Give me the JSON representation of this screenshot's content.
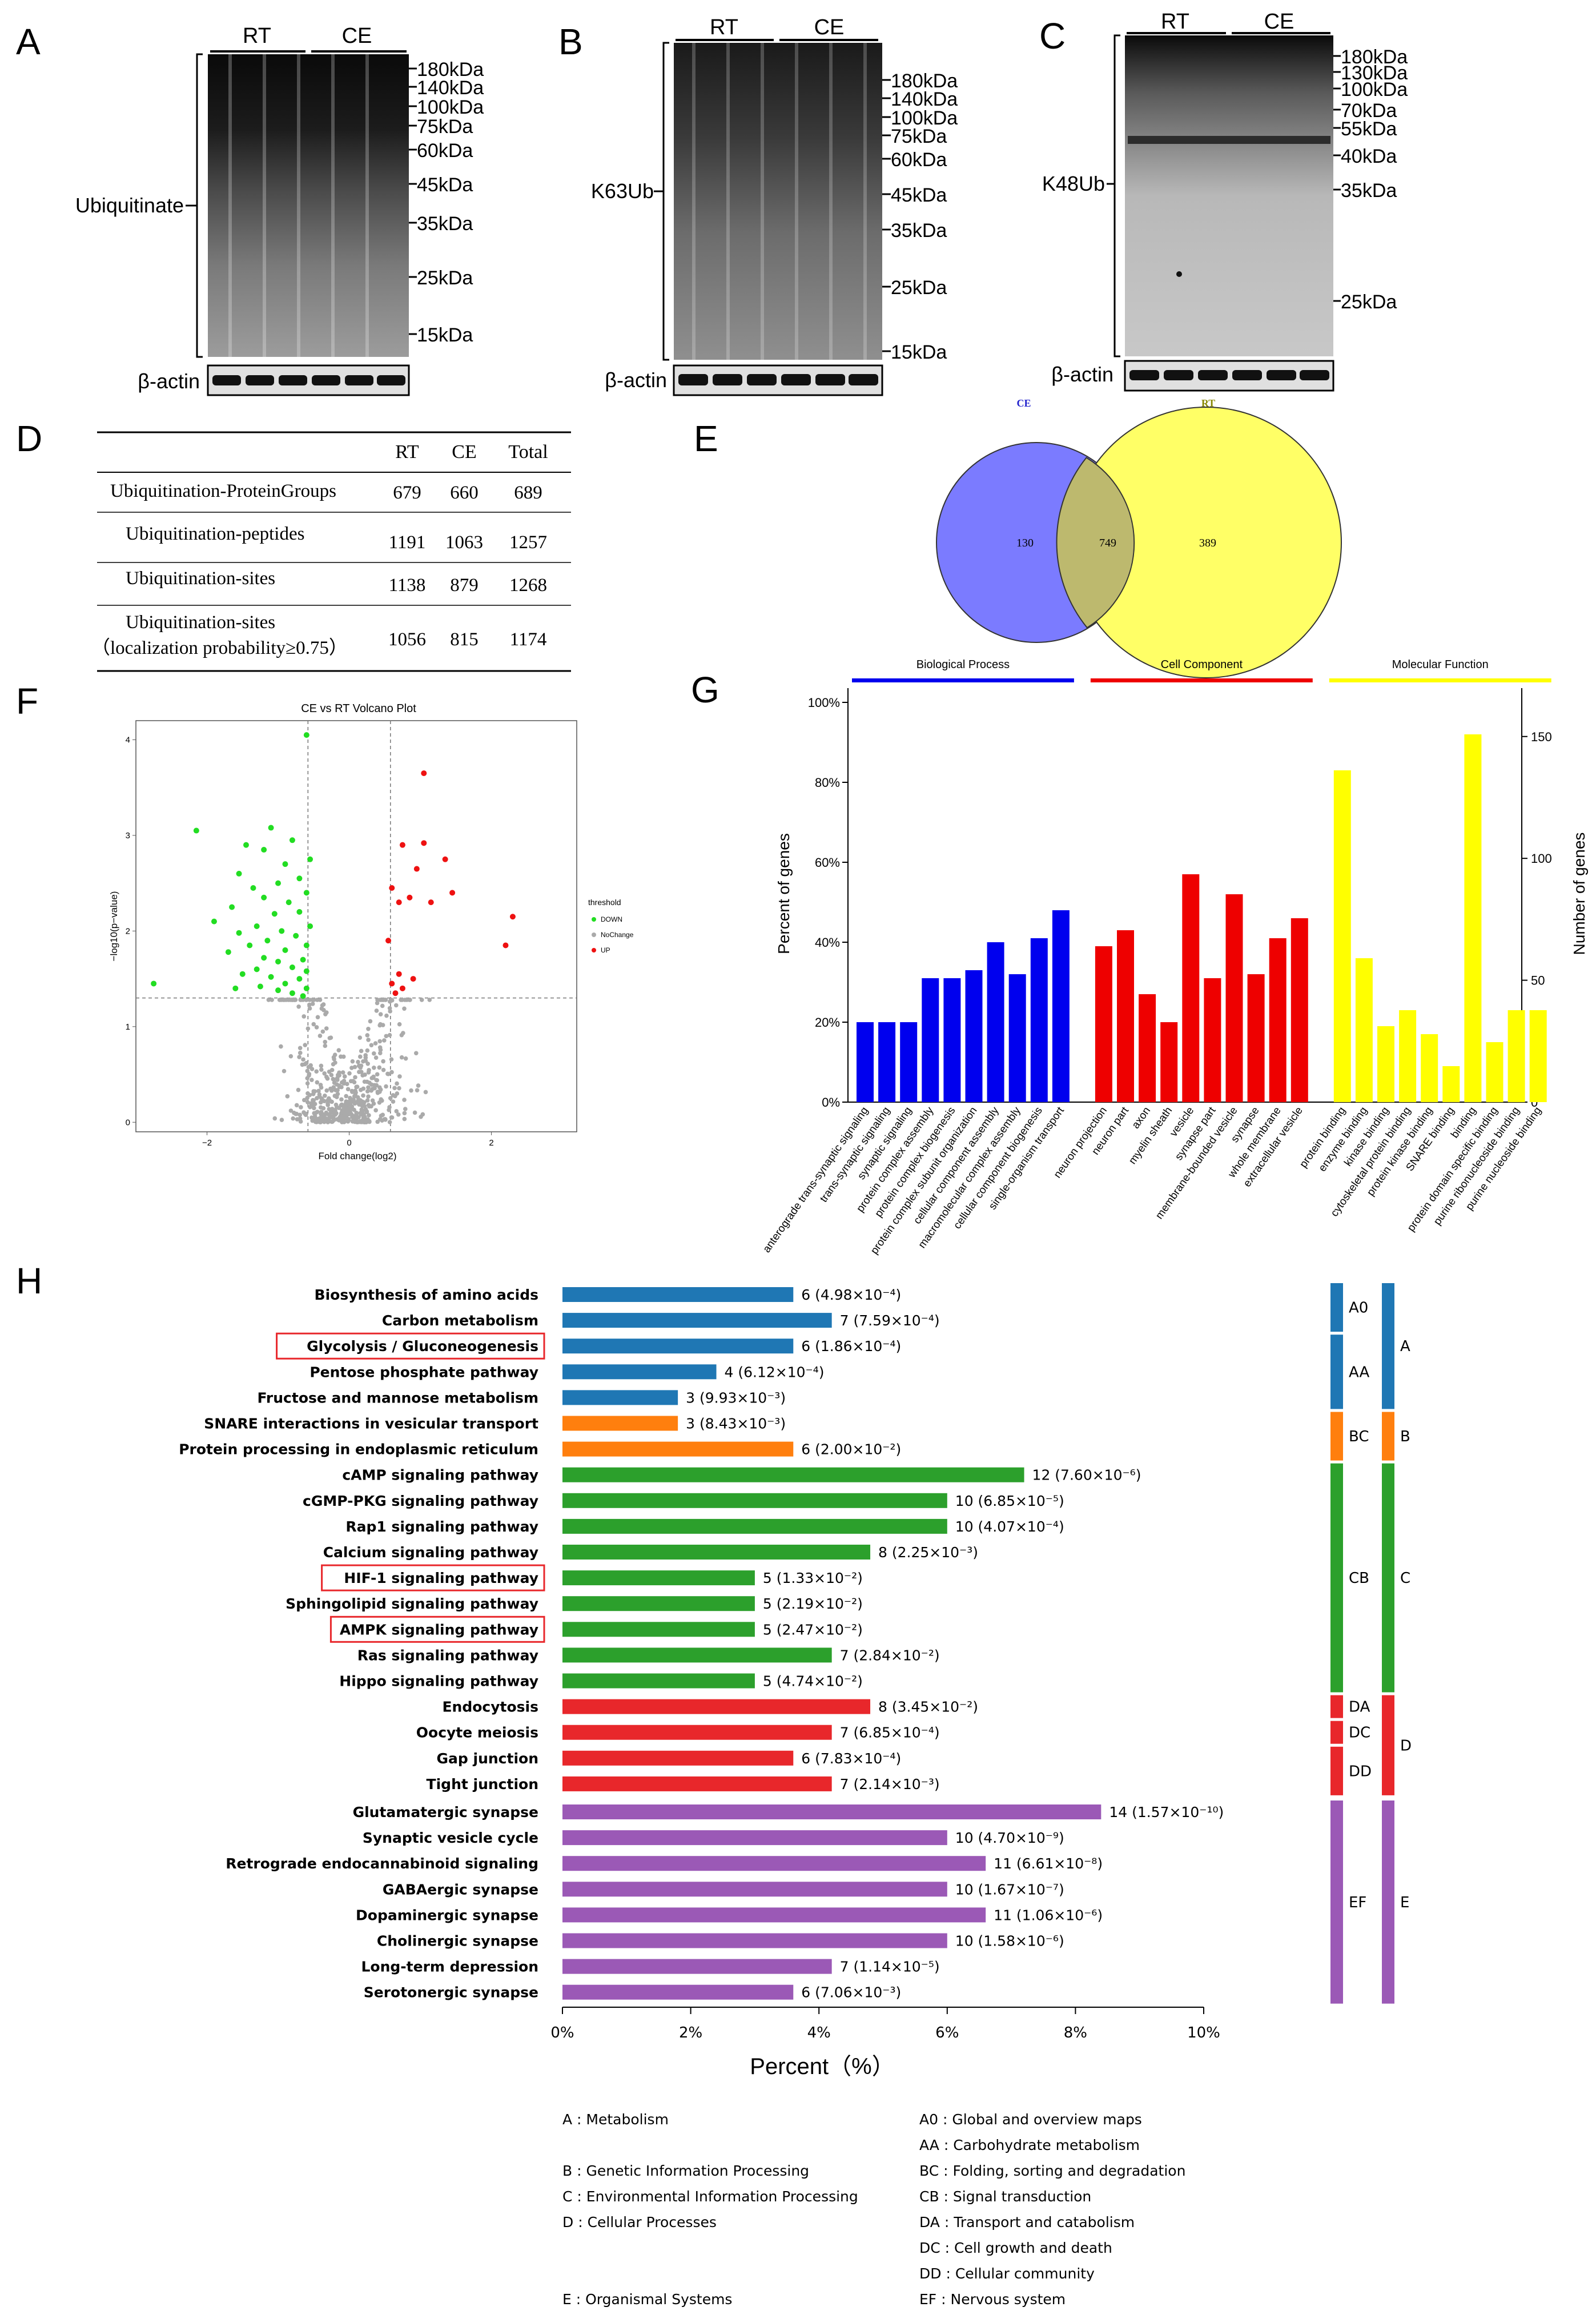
{
  "panels": {
    "A": {
      "letter": "A",
      "group_left": "RT",
      "group_right": "CE",
      "left_label": "Ubiquitinate",
      "markers": [
        "180kDa",
        "140kDa",
        "100kDa",
        "75kDa",
        "60kDa",
        "45kDa",
        "35kDa",
        "25kDa",
        "15kDa"
      ],
      "loading_label": "β-actin"
    },
    "B": {
      "letter": "B",
      "group_left": "RT",
      "group_right": "CE",
      "left_label": "K63Ub",
      "markers": [
        "180kDa",
        "140kDa",
        "100kDa",
        "75kDa",
        "60kDa",
        "45kDa",
        "35kDa",
        "25kDa",
        "15kDa"
      ],
      "loading_label": "β-actin"
    },
    "C": {
      "letter": "C",
      "group_left": "RT",
      "group_right": "CE",
      "left_label": "K48Ub",
      "markers": [
        "180kDa",
        "130kDa",
        "100kDa",
        "70kDa",
        "55kDa",
        "40kDa",
        "35kDa",
        "25kDa"
      ],
      "loading_label": "β-actin"
    },
    "D": {
      "letter": "D",
      "columns": [
        "",
        "RT",
        "CE",
        "Total"
      ],
      "rows": [
        {
          "label": [
            "Ubiquitination-ProteinGroups"
          ],
          "values": [
            "679",
            "660",
            "689"
          ]
        },
        {
          "label": [
            "Ubiquitination-peptides"
          ],
          "values": [
            "1191",
            "1063",
            "1257"
          ]
        },
        {
          "label": [
            "Ubiquitination-sites"
          ],
          "values": [
            "1138",
            "879",
            "1268"
          ]
        },
        {
          "label": [
            "Ubiquitination-sites",
            "（localization probability≥0.75）"
          ],
          "values": [
            "1056",
            "815",
            "1174"
          ]
        }
      ]
    },
    "E": {
      "letter": "E",
      "left_set": "CE",
      "right_set": "RT",
      "left_only": "130",
      "overlap": "749",
      "right_only": "389",
      "colors": {
        "left": "#7b7bff",
        "right": "#ffff66",
        "overlap": "#bdb96e"
      }
    },
    "F": {
      "letter": "F",
      "title": "CE vs RT Volcano Plot",
      "xlabel": "Fold change(log2)",
      "ylabel": "−log10(p−value)",
      "xticks": [
        "−2",
        "0",
        "2"
      ],
      "yticks": [
        "0",
        "1",
        "2",
        "3",
        "4"
      ],
      "legend_title": "threshold",
      "legend_items": [
        {
          "label": "DOWN",
          "color": "#22dd22"
        },
        {
          "label": "NoChange",
          "color": "#aaaaaa"
        },
        {
          "label": "UP",
          "color": "#ee1111"
        }
      ]
    },
    "G": {
      "letter": "G",
      "ylabel_left": "Percent of genes",
      "ylabel_right": "Number of genes",
      "yticks_left": [
        "0%",
        "20%",
        "40%",
        "60%",
        "80%",
        "100%"
      ],
      "yticks_right": [
        "0",
        "50",
        "100",
        "150"
      ]
    },
    "H": {
      "letter": "H",
      "xlabel": "Percent（%）",
      "xticks": [
        "0%",
        "2%",
        "4%",
        "6%",
        "8%",
        "10%"
      ],
      "legend_left": [
        "A : Metabolism",
        "B : Genetic Information Processing",
        "C : Environmental Information Processing",
        "D : Cellular Processes",
        "E : Organismal Systems"
      ],
      "legend_right": [
        "A0 : Global and overview maps",
        "AA : Carbohydrate metabolism",
        "BC : Folding, sorting and degradation",
        "CB : Signal transduction",
        "DA : Transport and catabolism",
        "DC : Cell growth and death",
        "DD : Cellular community",
        "EF : Nervous system"
      ],
      "sub_groups": [
        {
          "code": "A0",
          "color": "#1f77b4",
          "from": 0,
          "to": 1
        },
        {
          "code": "AA",
          "color": "#1f77b4",
          "from": 2,
          "to": 4
        },
        {
          "code": "BC",
          "color": "#ff7f0e",
          "from": 5,
          "to": 6
        },
        {
          "code": "CB",
          "color": "#2ca02c",
          "from": 7,
          "to": 15
        },
        {
          "code": "DA",
          "color": "#e8272b",
          "from": 16,
          "to": 16
        },
        {
          "code": "DC",
          "color": "#e8272b",
          "from": 17,
          "to": 17
        },
        {
          "code": "DD",
          "color": "#e8272b",
          "from": 18,
          "to": 19
        },
        {
          "code": "EF",
          "color": "#9b59b6",
          "from": 20,
          "to": 27
        }
      ],
      "main_groups": [
        {
          "code": "A",
          "color": "#1f77b4",
          "from": 0,
          "to": 4
        },
        {
          "code": "B",
          "color": "#ff7f0e",
          "from": 5,
          "to": 6
        },
        {
          "code": "C",
          "color": "#2ca02c",
          "from": 7,
          "to": 15
        },
        {
          "code": "D",
          "color": "#e8272b",
          "from": 16,
          "to": 19
        },
        {
          "code": "E",
          "color": "#9b59b6",
          "from": 20,
          "to": 27
        }
      ]
    }
  },
  "chart_data": [
    {
      "type": "scatter",
      "title": "CE vs RT Volcano Plot",
      "xlabel": "Fold change(log2)",
      "ylabel": "−log10(p−value)",
      "xlim": [
        -3,
        3.2
      ],
      "ylim": [
        -0.1,
        4.2
      ],
      "threshold_lines": {
        "x": [
          -0.58,
          0.58
        ],
        "y": [
          1.3
        ]
      },
      "series": [
        {
          "name": "DOWN",
          "color": "#22dd22",
          "points": [
            [
              -0.6,
              4.05
            ],
            [
              -1.1,
              3.08
            ],
            [
              -2.15,
              3.05
            ],
            [
              -0.8,
              2.95
            ],
            [
              -1.45,
              2.9
            ],
            [
              -0.55,
              2.75
            ],
            [
              -1.2,
              2.85
            ],
            [
              -0.9,
              2.7
            ],
            [
              -1.55,
              2.6
            ],
            [
              -0.7,
              2.55
            ],
            [
              -1.0,
              2.5
            ],
            [
              -1.35,
              2.45
            ],
            [
              -0.6,
              2.4
            ],
            [
              -1.2,
              2.35
            ],
            [
              -0.85,
              2.3
            ],
            [
              -1.65,
              2.25
            ],
            [
              -0.7,
              2.2
            ],
            [
              -1.05,
              2.18
            ],
            [
              -1.9,
              2.1
            ],
            [
              -0.55,
              2.05
            ],
            [
              -1.3,
              2.05
            ],
            [
              -0.95,
              2.0
            ],
            [
              -1.55,
              1.98
            ],
            [
              -0.75,
              1.95
            ],
            [
              -1.15,
              1.9
            ],
            [
              -0.6,
              1.85
            ],
            [
              -1.4,
              1.85
            ],
            [
              -0.9,
              1.8
            ],
            [
              -1.7,
              1.78
            ],
            [
              -1.2,
              1.72
            ],
            [
              -0.65,
              1.7
            ],
            [
              -1.0,
              1.68
            ],
            [
              -0.8,
              1.62
            ],
            [
              -1.3,
              1.6
            ],
            [
              -0.6,
              1.58
            ],
            [
              -1.5,
              1.55
            ],
            [
              -1.1,
              1.52
            ],
            [
              -0.7,
              1.5
            ],
            [
              -0.9,
              1.45
            ],
            [
              -1.25,
              1.42
            ],
            [
              -0.6,
              1.4
            ],
            [
              -1.0,
              1.38
            ],
            [
              -0.8,
              1.35
            ],
            [
              -2.75,
              1.45
            ],
            [
              -1.6,
              1.4
            ],
            [
              -0.65,
              1.32
            ]
          ]
        },
        {
          "name": "UP",
          "color": "#ee1111",
          "points": [
            [
              1.05,
              3.65
            ],
            [
              0.75,
              2.9
            ],
            [
              1.05,
              2.92
            ],
            [
              0.95,
              2.65
            ],
            [
              1.35,
              2.75
            ],
            [
              0.6,
              2.45
            ],
            [
              0.85,
              2.35
            ],
            [
              0.7,
              2.3
            ],
            [
              1.15,
              2.3
            ],
            [
              2.3,
              2.15
            ],
            [
              1.45,
              2.4
            ],
            [
              2.2,
              1.85
            ],
            [
              0.55,
              1.9
            ],
            [
              0.7,
              1.55
            ],
            [
              0.9,
              1.5
            ],
            [
              0.6,
              1.45
            ],
            [
              0.75,
              1.4
            ],
            [
              0.65,
              1.35
            ]
          ]
        }
      ]
    },
    {
      "type": "bar",
      "title": "",
      "groups": [
        {
          "name": "Biological Process",
          "color": "#0000ee",
          "categories": [
            "anterograde trans-synaptic signaling",
            "trans-synaptic signaling",
            "synaptic signaling",
            "protein complex assembly",
            "protein complex biogenesis",
            "protein complex subunit organization",
            "cellular component assembly",
            "macromolecular complex assembly",
            "cellular component biogenesis",
            "single-organism transport"
          ],
          "values": [
            20,
            20,
            20,
            31,
            31,
            33,
            40,
            32,
            41,
            48
          ]
        },
        {
          "name": "Cell Component",
          "color": "#ee0000",
          "categories": [
            "neuron projection",
            "neuron part",
            "axon",
            "myelin sheath",
            "vesicle",
            "synapse part",
            "membrane-bounded vesicle",
            "synapse",
            "whole membrane",
            "extracellular vesicle"
          ],
          "values": [
            39,
            43,
            27,
            20,
            57,
            31,
            52,
            32,
            41,
            46
          ]
        },
        {
          "name": "Molecular Function",
          "color": "#ffff00",
          "categories": [
            "protein binding",
            "enzyme binding",
            "kinase binding",
            "cytoskeletal protein binding",
            "protein kinase binding",
            "SNARE binding",
            "binding",
            "protein domain specific binding",
            "purine ribonucleoside binding",
            "purine nucleoside binding"
          ],
          "values": [
            83,
            36,
            19,
            23,
            17,
            9,
            92,
            15,
            23,
            23
          ]
        }
      ],
      "ylabel": "Percent of genes",
      "ylabel_right": "Number of genes",
      "ylim": [
        0,
        100
      ],
      "ylim_right": [
        0,
        164
      ]
    },
    {
      "type": "bar",
      "orientation": "horizontal",
      "xlabel": "Percent（%）",
      "xlim": [
        0,
        10
      ],
      "categories": [
        {
          "name": "Biosynthesis of amino acids",
          "value": 3.6,
          "label": "6 (4.98×10⁻⁴)",
          "color": "#1f77b4",
          "boxed": false
        },
        {
          "name": "Carbon metabolism",
          "value": 4.2,
          "label": "7 (7.59×10⁻⁴)",
          "color": "#1f77b4",
          "boxed": false
        },
        {
          "name": "Glycolysis / Gluconeogenesis",
          "value": 3.6,
          "label": "6 (1.86×10⁻⁴)",
          "color": "#1f77b4",
          "boxed": true
        },
        {
          "name": "Pentose phosphate pathway",
          "value": 2.4,
          "label": "4 (6.12×10⁻⁴)",
          "color": "#1f77b4",
          "boxed": false
        },
        {
          "name": "Fructose and mannose metabolism",
          "value": 1.8,
          "label": "3 (9.93×10⁻³)",
          "color": "#1f77b4",
          "boxed": false
        },
        {
          "name": "SNARE interactions in vesicular transport",
          "value": 1.8,
          "label": "3 (8.43×10⁻³)",
          "color": "#ff7f0e",
          "boxed": false
        },
        {
          "name": "Protein processing in endoplasmic reticulum",
          "value": 3.6,
          "label": "6 (2.00×10⁻²)",
          "color": "#ff7f0e",
          "boxed": false
        },
        {
          "name": "cAMP signaling pathway",
          "value": 7.2,
          "label": "12 (7.60×10⁻⁶)",
          "color": "#2ca02c",
          "boxed": false
        },
        {
          "name": "cGMP-PKG signaling pathway",
          "value": 6.0,
          "label": "10 (6.85×10⁻⁵)",
          "color": "#2ca02c",
          "boxed": false
        },
        {
          "name": "Rap1 signaling pathway",
          "value": 6.0,
          "label": "10 (4.07×10⁻⁴)",
          "color": "#2ca02c",
          "boxed": false
        },
        {
          "name": "Calcium signaling pathway",
          "value": 4.8,
          "label": "8 (2.25×10⁻³)",
          "color": "#2ca02c",
          "boxed": false
        },
        {
          "name": "HIF-1 signaling pathway",
          "value": 3.0,
          "label": "5 (1.33×10⁻²)",
          "color": "#2ca02c",
          "boxed": true
        },
        {
          "name": "Sphingolipid signaling pathway",
          "value": 3.0,
          "label": "5 (2.19×10⁻²)",
          "color": "#2ca02c",
          "boxed": false
        },
        {
          "name": "AMPK signaling pathway",
          "value": 3.0,
          "label": "5 (2.47×10⁻²)",
          "color": "#2ca02c",
          "boxed": true
        },
        {
          "name": "Ras signaling pathway",
          "value": 4.2,
          "label": "7 (2.84×10⁻²)",
          "color": "#2ca02c",
          "boxed": false
        },
        {
          "name": "Hippo signaling pathway",
          "value": 3.0,
          "label": "5 (4.74×10⁻²)",
          "color": "#2ca02c",
          "boxed": false
        },
        {
          "name": "Endocytosis",
          "value": 4.8,
          "label": "8 (3.45×10⁻²)",
          "color": "#e8272b",
          "boxed": false
        },
        {
          "name": "Oocyte meiosis",
          "value": 4.2,
          "label": "7 (6.85×10⁻⁴)",
          "color": "#e8272b",
          "boxed": false
        },
        {
          "name": "Gap junction",
          "value": 3.6,
          "label": "6 (7.83×10⁻⁴)",
          "color": "#e8272b",
          "boxed": false
        },
        {
          "name": "Tight junction",
          "value": 4.2,
          "label": "7 (2.14×10⁻³)",
          "color": "#e8272b",
          "boxed": false
        },
        {
          "name": "Glutamatergic synapse",
          "value": 8.4,
          "label": "14 (1.57×10⁻¹⁰)",
          "color": "#9b59b6",
          "boxed": false
        },
        {
          "name": "Synaptic vesicle cycle",
          "value": 6.0,
          "label": "10 (4.70×10⁻⁹)",
          "color": "#9b59b6",
          "boxed": false
        },
        {
          "name": "Retrograde endocannabinoid signaling",
          "value": 6.6,
          "label": "11 (6.61×10⁻⁸)",
          "color": "#9b59b6",
          "boxed": false
        },
        {
          "name": "GABAergic synapse",
          "value": 6.0,
          "label": "10 (1.67×10⁻⁷)",
          "color": "#9b59b6",
          "boxed": false
        },
        {
          "name": "Dopaminergic synapse",
          "value": 6.6,
          "label": "11 (1.06×10⁻⁶)",
          "color": "#9b59b6",
          "boxed": false
        },
        {
          "name": "Cholinergic synapse",
          "value": 6.0,
          "label": "10 (1.58×10⁻⁶)",
          "color": "#9b59b6",
          "boxed": false
        },
        {
          "name": "Long-term depression",
          "value": 4.2,
          "label": "7 (1.14×10⁻⁵)",
          "color": "#9b59b6",
          "boxed": false
        },
        {
          "name": "Serotonergic synapse",
          "value": 3.6,
          "label": "6 (7.06×10⁻³)",
          "color": "#9b59b6",
          "boxed": false
        }
      ]
    }
  ]
}
